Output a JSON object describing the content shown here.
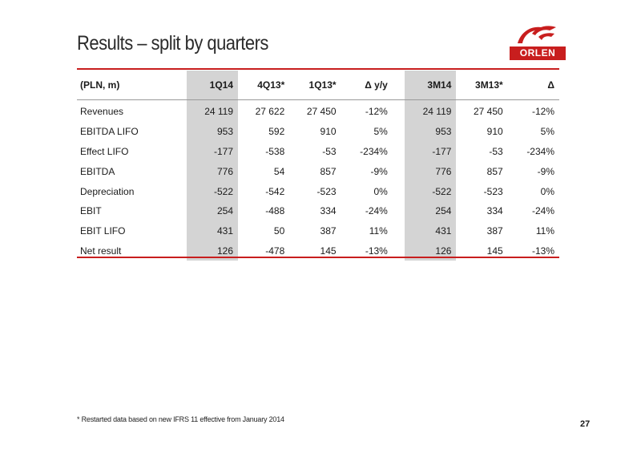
{
  "slide": {
    "title": "Results – split by quarters",
    "footnote": "* Restarted data based on new IFRS 11 effective from January 2014",
    "page_number": "27"
  },
  "logo": {
    "text": "ORLEN",
    "brand_color": "#c81e1e",
    "icon": "eagle-icon"
  },
  "table": {
    "header": {
      "label": "(PLN, m)",
      "q1": "1Q14",
      "q2": "4Q13*",
      "q3": "1Q13*",
      "q4": "Δ y/y",
      "m1": "3M14",
      "m2": "3M13*",
      "m3": "Δ"
    },
    "rows": [
      {
        "label": "Revenues",
        "q1": "24 119",
        "q2": "27 622",
        "q3": "27 450",
        "q4": "-12%",
        "m1": "24 119",
        "m2": "27 450",
        "m3": "-12%"
      },
      {
        "label": "EBITDA LIFO",
        "q1": "953",
        "q2": "592",
        "q3": "910",
        "q4": "5%",
        "m1": "953",
        "m2": "910",
        "m3": "5%"
      },
      {
        "label": "Effect LIFO",
        "q1": "-177",
        "q2": "-538",
        "q3": "-53",
        "q4": "-234%",
        "m1": "-177",
        "m2": "-53",
        "m3": "-234%"
      },
      {
        "label": "EBITDA",
        "q1": "776",
        "q2": "54",
        "q3": "857",
        "q4": "-9%",
        "m1": "776",
        "m2": "857",
        "m3": "-9%"
      },
      {
        "label": "Depreciation",
        "q1": "-522",
        "q2": "-542",
        "q3": "-523",
        "q4": "0%",
        "m1": "-522",
        "m2": "-523",
        "m3": "0%"
      },
      {
        "label": "EBIT",
        "q1": "254",
        "q2": "-488",
        "q3": "334",
        "q4": "-24%",
        "m1": "254",
        "m2": "334",
        "m3": "-24%"
      },
      {
        "label": "EBIT LIFO",
        "q1": "431",
        "q2": "50",
        "q3": "387",
        "q4": "11%",
        "m1": "431",
        "m2": "387",
        "m3": "11%"
      },
      {
        "label": "Net result",
        "q1": "126",
        "q2": "-478",
        "q3": "145",
        "q4": "-13%",
        "m1": "126",
        "m2": "145",
        "m3": "-13%"
      }
    ]
  },
  "colors": {
    "accent_red": "#c81e1e",
    "highlight_gray": "#d4d4d4"
  }
}
